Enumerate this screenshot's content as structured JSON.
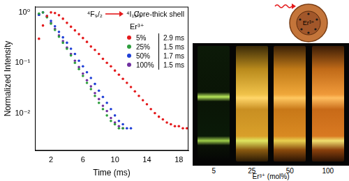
{
  "chart_data": {
    "type": "scatter",
    "title": "Core-thick shell",
    "transition": {
      "from": "⁴F₉/₂",
      "to": "⁴I₁₅/₂"
    },
    "x_label": "Time (ms)",
    "y_label": "Normalized Intensity",
    "legend_title": "Er³⁺",
    "legend": "upper right",
    "log": "y",
    "grid": false,
    "marker": "circle",
    "xlim": [
      0,
      19.2
    ],
    "xticks": [
      2,
      6,
      10,
      14,
      18
    ],
    "ylim": [
      0.0018,
      1.3
    ],
    "yticks": [
      {
        "value": 0.01,
        "label": "10⁻²"
      },
      {
        "value": 0.1,
        "label": "10⁻¹"
      },
      {
        "value": 1,
        "label": "10⁰"
      }
    ],
    "x": [
      0.5,
      1,
      1.5,
      2,
      2.5,
      3,
      3.5,
      4,
      4.5,
      5,
      5.5,
      6,
      6.5,
      7,
      7.5,
      8,
      8.5,
      9,
      9.5,
      10,
      10.5,
      11,
      11.5,
      12,
      12.5,
      13,
      13.5,
      14,
      14.5,
      15,
      15.5,
      16,
      16.5,
      17,
      17.5,
      18,
      18.5,
      19
    ],
    "series": [
      {
        "name": "5%",
        "color": "#e41a1c",
        "lifetime": "2.9 ms",
        "values": [
          0.3,
          0.55,
          0.85,
          1.0,
          0.97,
          0.88,
          0.75,
          0.62,
          0.52,
          0.44,
          0.37,
          0.31,
          0.26,
          0.21,
          0.18,
          0.15,
          0.12,
          0.1,
          0.085,
          0.07,
          0.058,
          0.048,
          0.04,
          0.033,
          0.027,
          0.022,
          0.018,
          0.015,
          0.012,
          0.01,
          0.0085,
          0.0075,
          0.0065,
          0.006,
          0.0055,
          0.0055,
          0.005,
          0.005
        ]
      },
      {
        "name": "25%",
        "color": "#2e9e3e",
        "lifetime": "1.5 ms",
        "values": [
          0.95,
          1.0,
          0.8,
          0.6,
          0.45,
          0.33,
          0.25,
          0.19,
          0.14,
          0.1,
          0.075,
          0.055,
          0.04,
          0.03,
          0.022,
          0.016,
          0.012,
          0.009,
          0.007,
          0.006,
          0.005,
          0.005,
          null,
          null,
          null,
          null,
          null,
          null,
          null,
          null,
          null,
          null,
          null,
          null,
          null,
          null,
          null,
          null
        ]
      },
      {
        "name": "50%",
        "color": "#1f3fd6",
        "lifetime": "1.7 ms",
        "values": [
          0.9,
          1.0,
          0.85,
          0.68,
          0.53,
          0.41,
          0.32,
          0.25,
          0.19,
          0.15,
          0.11,
          0.085,
          0.065,
          0.05,
          0.038,
          0.028,
          0.021,
          0.016,
          0.012,
          0.009,
          0.007,
          0.006,
          0.005,
          0.005,
          null,
          null,
          null,
          null,
          null,
          null,
          null,
          null,
          null,
          null,
          null,
          null,
          null,
          null
        ]
      },
      {
        "name": "100%",
        "color": "#7030a0",
        "lifetime": "1.5 ms",
        "values": [
          0.9,
          1.0,
          0.82,
          0.62,
          0.47,
          0.35,
          0.27,
          0.2,
          0.15,
          0.11,
          0.082,
          0.061,
          0.045,
          0.034,
          0.025,
          0.019,
          0.014,
          0.011,
          0.008,
          0.0065,
          0.0055,
          0.005,
          null,
          null,
          null,
          null,
          null,
          null,
          null,
          null,
          null,
          null,
          null,
          null,
          null,
          null,
          null,
          null
        ]
      }
    ]
  },
  "schematic": {
    "label": "Er³⁺"
  },
  "photo": {
    "labels": [
      "5",
      "25",
      "50",
      "100"
    ],
    "axis_label": "Er³⁺ (mol%)"
  }
}
